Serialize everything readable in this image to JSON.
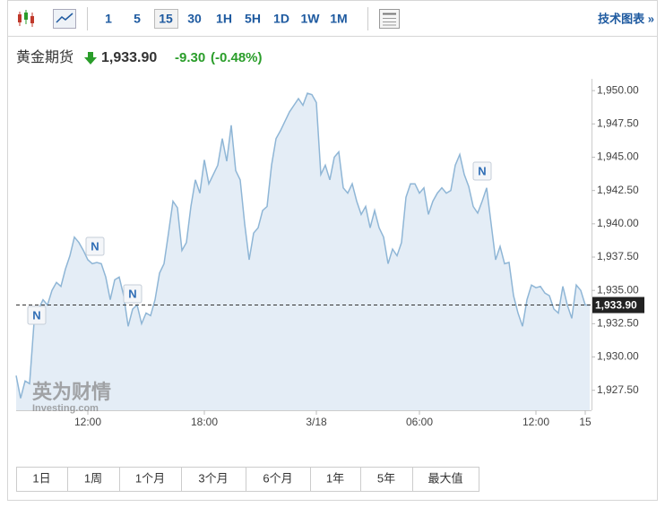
{
  "toolbar": {
    "intervals": [
      "1",
      "5",
      "15",
      "30",
      "1H",
      "5H",
      "1D",
      "1W",
      "1M"
    ],
    "tech_chart": "技术图表 »"
  },
  "header": {
    "name": "黄金期货",
    "price": "1,933.90",
    "change": "-9.30",
    "change_pct": "(-0.48%)"
  },
  "watermark": {
    "cn": "英为财情",
    "en": "Investing.com"
  },
  "ranges": [
    "1日",
    "1周",
    "1个月",
    "3个月",
    "6个月",
    "1年",
    "5年",
    "最大值"
  ],
  "chart_data": {
    "type": "area",
    "color": "#8fb6d6",
    "fill": "#e4edf6",
    "categories": [
      null,
      null,
      null,
      null,
      null,
      null,
      null,
      null,
      null,
      null,
      null,
      null,
      null,
      null,
      null,
      null,
      "12:00",
      null,
      null,
      null,
      null,
      null,
      null,
      null,
      null,
      null,
      null,
      null,
      null,
      null,
      null,
      null,
      null,
      null,
      null,
      null,
      null,
      null,
      null,
      null,
      null,
      null,
      "18:00",
      null,
      null,
      null,
      null,
      null,
      null,
      null,
      null,
      null,
      null,
      null,
      null,
      null,
      null,
      null,
      null,
      null,
      null,
      null,
      null,
      null,
      null,
      null,
      null,
      "3/18",
      null,
      null,
      null,
      null,
      null,
      null,
      null,
      null,
      null,
      null,
      null,
      null,
      null,
      null,
      null,
      null,
      null,
      null,
      null,
      null,
      null,
      null,
      "06:00",
      null,
      null,
      null,
      null,
      null,
      null,
      null,
      null,
      null,
      null,
      null,
      null,
      null,
      null,
      null,
      null,
      null,
      null,
      null,
      null,
      null,
      null,
      null,
      null,
      null,
      "12:00",
      null,
      null,
      null,
      null,
      null,
      null,
      null,
      null,
      null,
      null,
      "15",
      null
    ],
    "values": [
      1928.6,
      1926.9,
      1928.2,
      1928.0,
      1932.6,
      1933.6,
      1934.3,
      1933.9,
      1935.0,
      1935.6,
      1935.3,
      1936.6,
      1937.6,
      1939.0,
      1938.6,
      1938.0,
      1937.3,
      1937.0,
      1937.1,
      1937.0,
      1936.0,
      1934.3,
      1935.8,
      1936.0,
      1934.6,
      1932.3,
      1933.6,
      1933.9,
      1932.5,
      1933.3,
      1933.1,
      1934.3,
      1936.3,
      1937.0,
      1939.3,
      1941.7,
      1941.2,
      1938.0,
      1938.6,
      1941.3,
      1943.3,
      1942.3,
      1944.8,
      1943.0,
      1943.7,
      1944.4,
      1946.4,
      1944.7,
      1947.4,
      1944.0,
      1943.3,
      1940.0,
      1937.3,
      1939.3,
      1939.7,
      1941.0,
      1941.3,
      1944.4,
      1946.4,
      1947.0,
      1947.7,
      1948.4,
      1948.9,
      1949.4,
      1948.9,
      1949.8,
      1949.7,
      1949.1,
      1943.7,
      1944.4,
      1943.3,
      1945.0,
      1945.4,
      1942.7,
      1942.3,
      1943.0,
      1941.7,
      1940.7,
      1941.3,
      1939.7,
      1941.0,
      1939.7,
      1939.0,
      1937.0,
      1938.1,
      1937.6,
      1938.6,
      1942.0,
      1943.0,
      1943.0,
      1942.3,
      1942.7,
      1940.7,
      1941.7,
      1942.3,
      1942.7,
      1942.3,
      1942.5,
      1944.4,
      1945.2,
      1943.7,
      1942.8,
      1941.3,
      1940.8,
      1941.7,
      1942.7,
      1940.0,
      1937.3,
      1938.3,
      1937.0,
      1937.1,
      1934.6,
      1933.3,
      1932.3,
      1934.3,
      1935.4,
      1935.2,
      1935.3,
      1934.8,
      1934.6,
      1933.6,
      1933.3,
      1935.3,
      1933.9,
      1932.9,
      1935.4,
      1935.0,
      1933.9,
      1933.9
    ],
    "ylim": [
      1926,
      1950.75
    ],
    "yticks": [
      {
        "value": 1927.5,
        "label": "1,927.50"
      },
      {
        "value": 1930,
        "label": "1,930.00"
      },
      {
        "value": 1932.5,
        "label": "1,932.50"
      },
      {
        "value": 1935,
        "label": "1,935.00"
      },
      {
        "value": 1937.5,
        "label": "1,937.50"
      },
      {
        "value": 1940,
        "label": "1,940.00"
      },
      {
        "value": 1942.5,
        "label": "1,942.50"
      },
      {
        "value": 1945,
        "label": "1,945.00"
      },
      {
        "value": 1947.5,
        "label": "1,947.50"
      },
      {
        "value": 1950,
        "label": "1,950.00"
      }
    ],
    "current_price": {
      "value": 1933.9,
      "label": "1,933.90"
    },
    "annotations": [
      "N",
      "N",
      "N",
      "N"
    ]
  }
}
